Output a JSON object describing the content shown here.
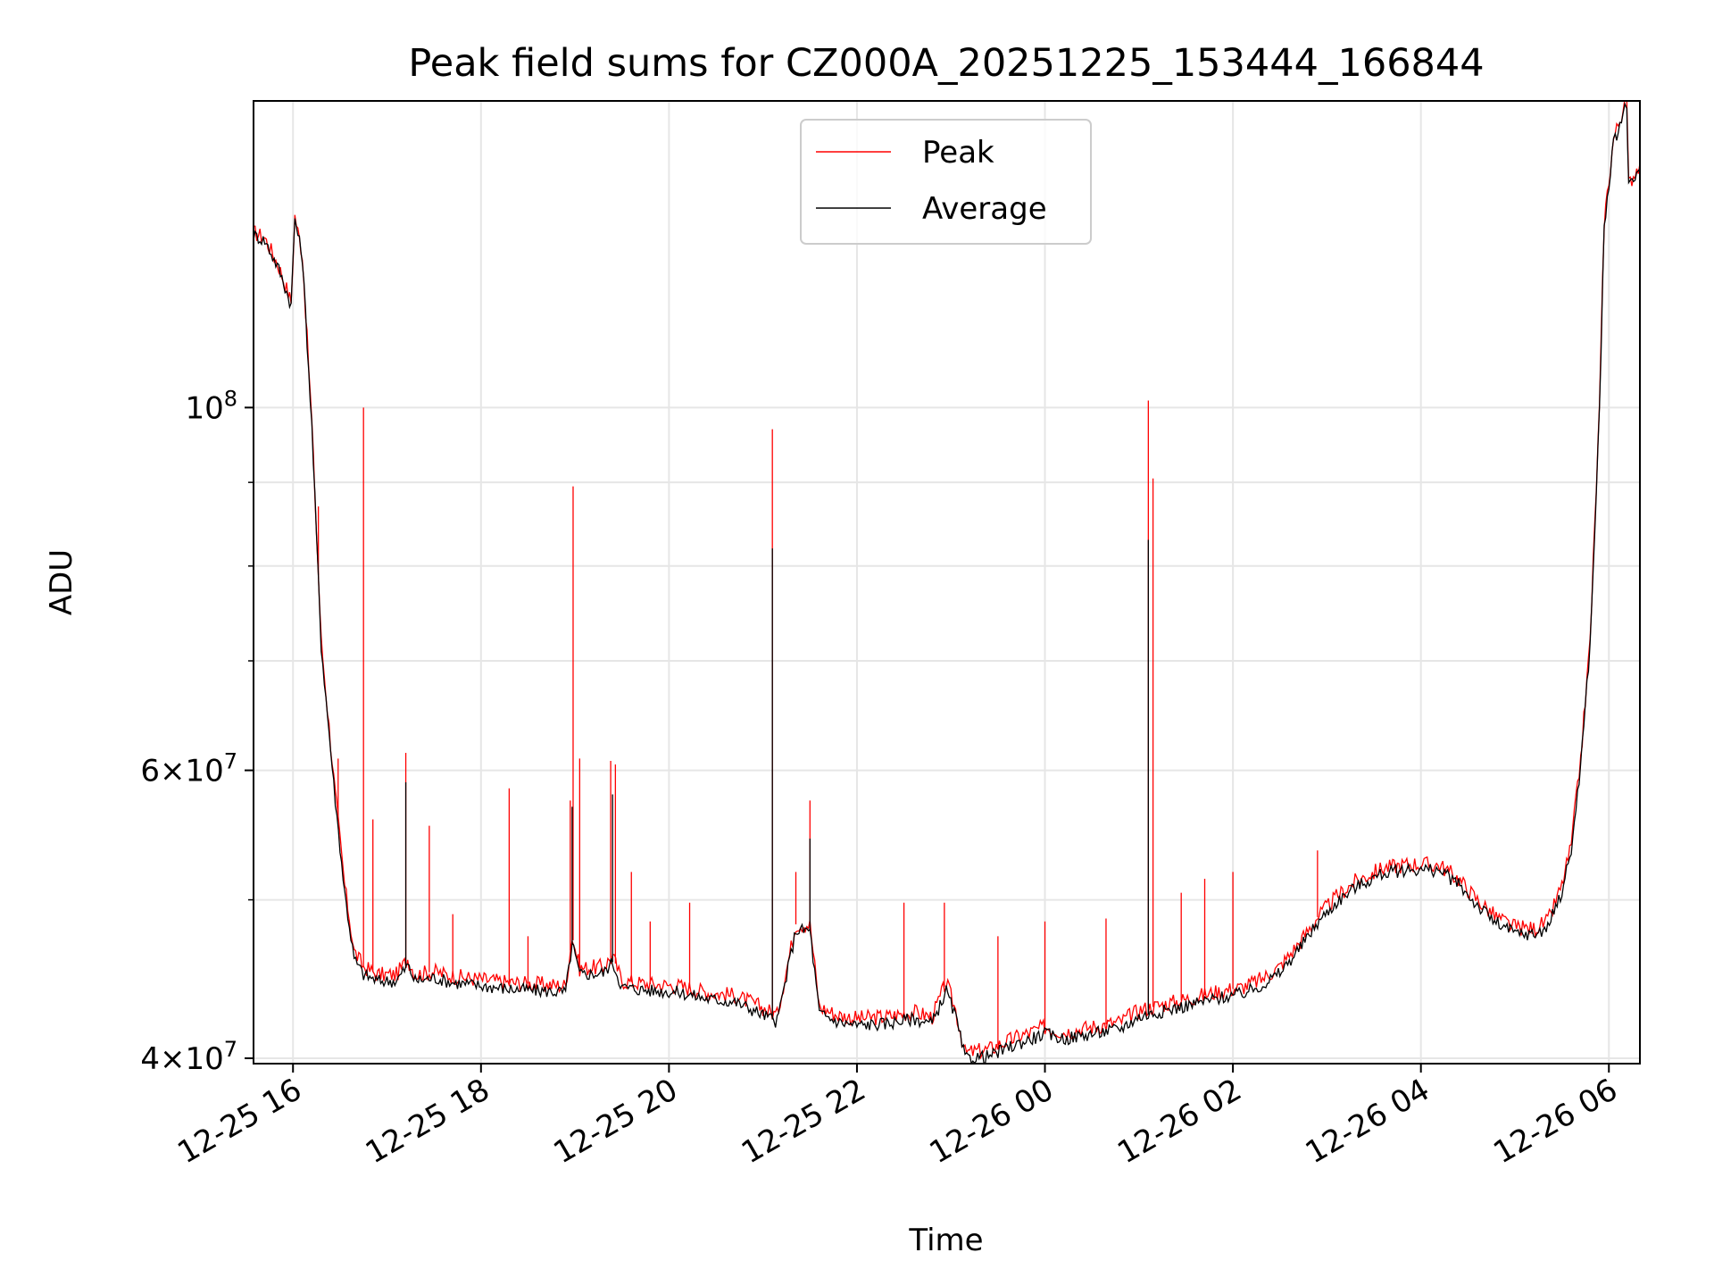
{
  "chart_data": {
    "type": "line",
    "title": "Peak field sums for CZ000A_20251225_153444_166844",
    "xlabel": "Time",
    "ylabel": "ADU",
    "yscale": "log",
    "ylim": [
      39700000,
      154000000
    ],
    "xlim_hours": [
      15.58,
      30.33
    ],
    "grid": true,
    "legend_position": "upper-center",
    "x_ticks": [
      {
        "label": "12-25 16",
        "hour": 16
      },
      {
        "label": "12-25 18",
        "hour": 18
      },
      {
        "label": "12-25 20",
        "hour": 20
      },
      {
        "label": "12-25 22",
        "hour": 22
      },
      {
        "label": "12-26 00",
        "hour": 24
      },
      {
        "label": "12-26 02",
        "hour": 26
      },
      {
        "label": "12-26 04",
        "hour": 28
      },
      {
        "label": "12-26 06",
        "hour": 30
      }
    ],
    "y_ticks": [
      {
        "value": 40000000,
        "label_mant": "4",
        "label_exp": "7"
      },
      {
        "value": 60000000,
        "label_mant": "6",
        "label_exp": "7"
      },
      {
        "value": 100000000,
        "label_mant": "10",
        "label_exp": "8"
      }
    ],
    "y_minor_ticks": [
      50000000,
      70000000,
      80000000,
      90000000
    ],
    "series": [
      {
        "name": "Peak",
        "color": "#ff0000",
        "points": [
          [
            15.58,
            128000000
          ],
          [
            15.7,
            127000000
          ],
          [
            15.85,
            122000000
          ],
          [
            15.98,
            116000000
          ],
          [
            16.02,
            131000000
          ],
          [
            16.1,
            124000000
          ],
          [
            16.2,
            98000000
          ],
          [
            16.3,
            72000000
          ],
          [
            16.45,
            58000000
          ],
          [
            16.55,
            51000000
          ],
          [
            16.65,
            46500000
          ],
          [
            16.75,
            45500000
          ],
          [
            16.9,
            45000000
          ],
          [
            17.1,
            45000000
          ],
          [
            17.22,
            46000000
          ],
          [
            17.3,
            45000000
          ],
          [
            17.5,
            45200000
          ],
          [
            17.7,
            44900000
          ],
          [
            18.0,
            44700000
          ],
          [
            18.3,
            44500000
          ],
          [
            18.6,
            44400000
          ],
          [
            18.9,
            44300000
          ],
          [
            18.97,
            47500000
          ],
          [
            19.05,
            45400000
          ],
          [
            19.3,
            45500000
          ],
          [
            19.4,
            46200000
          ],
          [
            19.5,
            44600000
          ],
          [
            19.8,
            44400000
          ],
          [
            20.1,
            44300000
          ],
          [
            20.4,
            43900000
          ],
          [
            20.7,
            43700000
          ],
          [
            20.9,
            43200000
          ],
          [
            21.05,
            42800000
          ],
          [
            21.15,
            42500000
          ],
          [
            21.35,
            48300000
          ],
          [
            21.5,
            48300000
          ],
          [
            21.6,
            43000000
          ],
          [
            21.8,
            42500000
          ],
          [
            22.0,
            42300000
          ],
          [
            22.3,
            42400000
          ],
          [
            22.6,
            42700000
          ],
          [
            22.8,
            42400000
          ],
          [
            22.95,
            44500000
          ],
          [
            23.05,
            42800000
          ],
          [
            23.15,
            40300000
          ],
          [
            23.4,
            40500000
          ],
          [
            23.7,
            41200000
          ],
          [
            24.0,
            41800000
          ],
          [
            24.2,
            41500000
          ],
          [
            24.5,
            41800000
          ],
          [
            24.8,
            42100000
          ],
          [
            25.0,
            42800000
          ],
          [
            25.3,
            43200000
          ],
          [
            25.6,
            43600000
          ],
          [
            25.9,
            44000000
          ],
          [
            26.1,
            44200000
          ],
          [
            26.3,
            44700000
          ],
          [
            26.5,
            45500000
          ],
          [
            26.7,
            47000000
          ],
          [
            26.9,
            48800000
          ],
          [
            27.1,
            50200000
          ],
          [
            27.3,
            51300000
          ],
          [
            27.6,
            52300000
          ],
          [
            27.9,
            52600000
          ],
          [
            28.2,
            52500000
          ],
          [
            28.4,
            51500000
          ],
          [
            28.6,
            50000000
          ],
          [
            28.8,
            48800000
          ],
          [
            29.0,
            48100000
          ],
          [
            29.2,
            48000000
          ],
          [
            29.35,
            48500000
          ],
          [
            29.5,
            51000000
          ],
          [
            29.6,
            54000000
          ],
          [
            29.7,
            61000000
          ],
          [
            29.8,
            72000000
          ],
          [
            29.9,
            100000000
          ],
          [
            29.95,
            130000000
          ],
          [
            30.05,
            146000000
          ],
          [
            30.15,
            152000000
          ],
          [
            30.19,
            154000000
          ],
          [
            30.21,
            137000000
          ],
          [
            30.33,
            141000000
          ]
        ],
        "spikes": [
          [
            16.27,
            87000000
          ],
          [
            16.48,
            61000000
          ],
          [
            16.75,
            100000000
          ],
          [
            16.85,
            56000000
          ],
          [
            17.2,
            61500000
          ],
          [
            17.45,
            55500000
          ],
          [
            17.7,
            49000000
          ],
          [
            18.3,
            58500000
          ],
          [
            18.5,
            47500000
          ],
          [
            18.95,
            57500000
          ],
          [
            18.98,
            89500000
          ],
          [
            19.05,
            61000000
          ],
          [
            19.38,
            60800000
          ],
          [
            19.43,
            60500000
          ],
          [
            19.6,
            52000000
          ],
          [
            19.8,
            48500000
          ],
          [
            20.22,
            49800000
          ],
          [
            21.1,
            97000000
          ],
          [
            21.35,
            52000000
          ],
          [
            21.5,
            57500000
          ],
          [
            22.5,
            49800000
          ],
          [
            22.93,
            49800000
          ],
          [
            23.5,
            47500000
          ],
          [
            24.0,
            48500000
          ],
          [
            24.65,
            48700000
          ],
          [
            25.1,
            101000000
          ],
          [
            25.15,
            90500000
          ],
          [
            25.45,
            50500000
          ],
          [
            25.7,
            51500000
          ],
          [
            26.0,
            52000000
          ],
          [
            26.9,
            53600000
          ]
        ]
      },
      {
        "name": "Average",
        "color": "#000000",
        "points": [
          [
            15.58,
            127500000
          ],
          [
            15.7,
            126500000
          ],
          [
            15.85,
            121500000
          ],
          [
            15.98,
            115500000
          ],
          [
            16.02,
            130500000
          ],
          [
            16.1,
            123500000
          ],
          [
            16.2,
            97500000
          ],
          [
            16.3,
            71500000
          ],
          [
            16.45,
            57500000
          ],
          [
            16.55,
            50500000
          ],
          [
            16.65,
            46000000
          ],
          [
            16.75,
            45000000
          ],
          [
            16.9,
            44600000
          ],
          [
            17.1,
            44600000
          ],
          [
            17.22,
            45600000
          ],
          [
            17.3,
            44600000
          ],
          [
            17.5,
            44800000
          ],
          [
            17.7,
            44500000
          ],
          [
            18.0,
            44300000
          ],
          [
            18.3,
            44100000
          ],
          [
            18.6,
            44000000
          ],
          [
            18.9,
            43900000
          ],
          [
            18.97,
            47000000
          ],
          [
            19.05,
            45000000
          ],
          [
            19.3,
            45100000
          ],
          [
            19.4,
            45800000
          ],
          [
            19.5,
            44200000
          ],
          [
            19.8,
            44000000
          ],
          [
            20.1,
            43900000
          ],
          [
            20.4,
            43500000
          ],
          [
            20.7,
            43300000
          ],
          [
            20.9,
            42800000
          ],
          [
            21.05,
            42400000
          ],
          [
            21.15,
            42100000
          ],
          [
            21.35,
            47900000
          ],
          [
            21.5,
            47900000
          ],
          [
            21.6,
            42600000
          ],
          [
            21.8,
            42100000
          ],
          [
            22.0,
            41900000
          ],
          [
            22.3,
            42000000
          ],
          [
            22.6,
            42300000
          ],
          [
            22.8,
            42000000
          ],
          [
            22.95,
            44000000
          ],
          [
            23.05,
            42400000
          ],
          [
            23.15,
            40000000
          ],
          [
            23.4,
            40100000
          ],
          [
            23.7,
            40800000
          ],
          [
            24.0,
            41400000
          ],
          [
            24.2,
            41100000
          ],
          [
            24.5,
            41400000
          ],
          [
            24.8,
            41700000
          ],
          [
            25.0,
            42400000
          ],
          [
            25.3,
            42800000
          ],
          [
            25.6,
            43200000
          ],
          [
            25.9,
            43600000
          ],
          [
            26.1,
            43800000
          ],
          [
            26.3,
            44300000
          ],
          [
            26.5,
            45100000
          ],
          [
            26.7,
            46600000
          ],
          [
            26.9,
            48400000
          ],
          [
            27.1,
            49800000
          ],
          [
            27.3,
            50900000
          ],
          [
            27.6,
            51900000
          ],
          [
            27.9,
            52200000
          ],
          [
            28.2,
            52100000
          ],
          [
            28.4,
            51100000
          ],
          [
            28.6,
            49600000
          ],
          [
            28.8,
            48400000
          ],
          [
            29.0,
            47700000
          ],
          [
            29.2,
            47600000
          ],
          [
            29.35,
            48100000
          ],
          [
            29.5,
            50600000
          ],
          [
            29.6,
            53600000
          ],
          [
            29.7,
            60500000
          ],
          [
            29.8,
            71500000
          ],
          [
            29.9,
            99500000
          ],
          [
            29.95,
            129000000
          ],
          [
            30.05,
            145000000
          ],
          [
            30.15,
            151000000
          ],
          [
            30.19,
            153500000
          ],
          [
            30.21,
            136000000
          ],
          [
            30.33,
            140000000
          ]
        ],
        "spikes": [
          [
            17.2,
            59000000
          ],
          [
            18.97,
            57000000
          ],
          [
            19.4,
            58000000
          ],
          [
            21.1,
            82000000
          ],
          [
            21.5,
            54500000
          ],
          [
            25.1,
            83000000
          ]
        ]
      }
    ]
  }
}
